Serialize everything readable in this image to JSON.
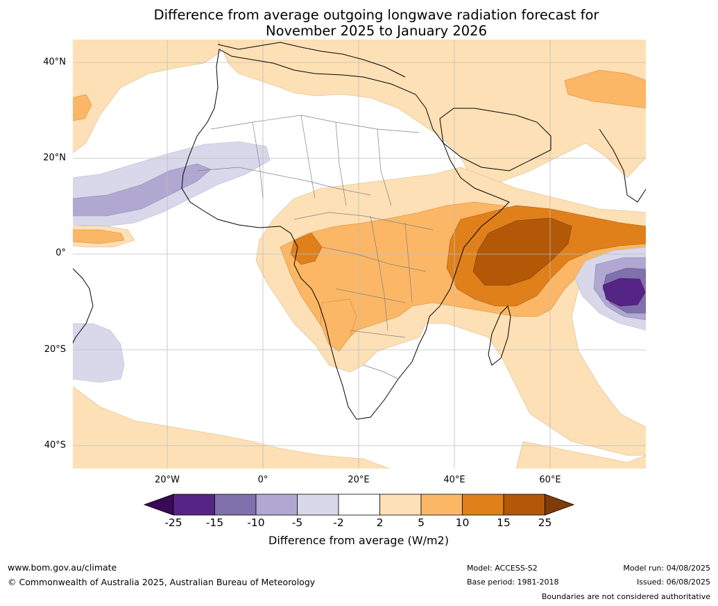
{
  "title_line1": "Difference from average outgoing longwave radiation forecast for",
  "title_line2": "November 2025 to January 2026",
  "map": {
    "lat_labels": [
      "40°N",
      "20°N",
      "0°",
      "20°S",
      "40°S"
    ],
    "lon_labels": [
      "20°W",
      "0°",
      "20°E",
      "40°E",
      "60°E"
    ],
    "gridlines": true
  },
  "colorbar": {
    "label": "Difference from average (W/m2)",
    "ticks": [
      "-25",
      "-15",
      "-10",
      "-5",
      "-2",
      "2",
      "5",
      "10",
      "15",
      "25"
    ],
    "colors": {
      "below_-25": "#3a0a55",
      "-25_-15": "#552585",
      "-15_-10": "#8070ab",
      "-10_-5": "#b0a8d0",
      "-5_-2": "#d8d8ea",
      "-2_2": "#ffffff",
      "2_5": "#fde0b5",
      "5_10": "#fbb765",
      "10_15": "#e0801b",
      "15_25": "#b35806",
      "above_25": "#7f3b08"
    }
  },
  "footer": {
    "website": "www.bom.gov.au/climate",
    "copyright": "© Commonwealth of Australia 2025, Australian Bureau of Meteorology",
    "model": "Model: ACCESS-S2",
    "base_period": "Base period: 1981-2018",
    "model_run": "Model run: 04/08/2025",
    "issued": "Issued: 06/08/2025",
    "disclaimer": "Boundaries are not considered authoritative"
  }
}
